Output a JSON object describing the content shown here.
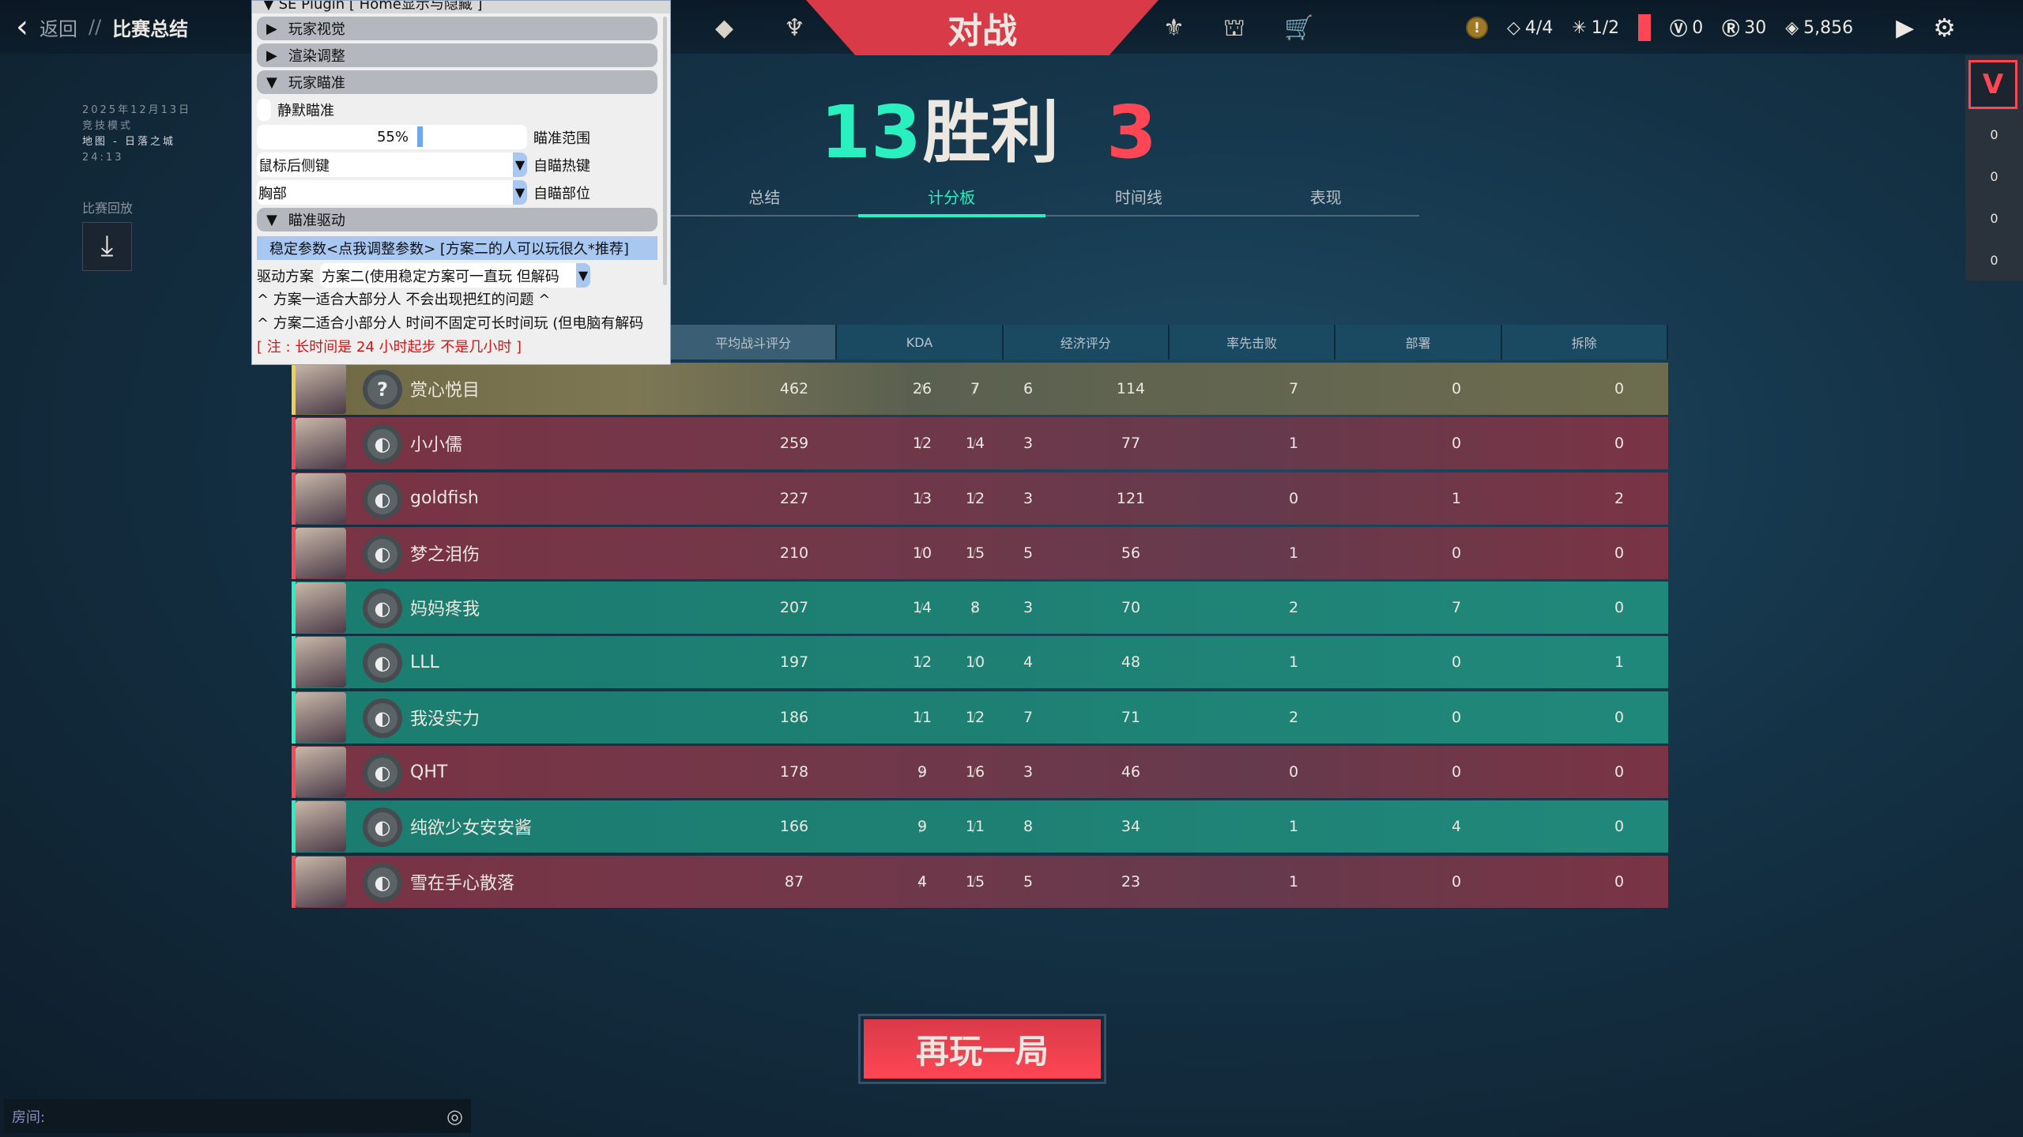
{
  "header": {
    "back_label": "返回",
    "separator": "//",
    "page_title": "比赛总结",
    "mode_banner": "对战"
  },
  "currency": {
    "missions": "4/4",
    "stars": "1/2",
    "vp": "0",
    "radianite": "30",
    "kc": "5,856"
  },
  "match_info": {
    "date": "2025年12月13日",
    "mode": "竞技模式",
    "map": "地图 - 日落之城",
    "duration": "24:13"
  },
  "replay": {
    "label": "比赛回放"
  },
  "result": {
    "ally_score": "13",
    "label": "胜利",
    "enemy_score": "3",
    "ally_color": "#2af0c0",
    "enemy_color": "#ff4655"
  },
  "tabs": [
    {
      "label": "总结"
    },
    {
      "label": "计分板",
      "active": true
    },
    {
      "label": "时间线"
    },
    {
      "label": "表现"
    }
  ],
  "table": {
    "headers": [
      "平均战斗评分",
      "KDA",
      "经济评分",
      "率先击败",
      "部署",
      "拆除"
    ],
    "rows": [
      {
        "name": "赏心悦目",
        "team": "yellow",
        "acs": "462",
        "k": "26",
        "d": "7",
        "a": "6",
        "econ": "114",
        "fb": "7",
        "plants": "0",
        "defuses": "0"
      },
      {
        "name": "小小儒",
        "team": "red",
        "acs": "259",
        "k": "12",
        "d": "14",
        "a": "3",
        "econ": "77",
        "fb": "1",
        "plants": "0",
        "defuses": "0"
      },
      {
        "name": "goldfish",
        "team": "red",
        "acs": "227",
        "k": "13",
        "d": "12",
        "a": "3",
        "econ": "121",
        "fb": "0",
        "plants": "1",
        "defuses": "2"
      },
      {
        "name": "梦之泪伤",
        "team": "red",
        "acs": "210",
        "k": "10",
        "d": "15",
        "a": "5",
        "econ": "56",
        "fb": "1",
        "plants": "0",
        "defuses": "0"
      },
      {
        "name": "妈妈疼我",
        "team": "teal",
        "acs": "207",
        "k": "14",
        "d": "8",
        "a": "3",
        "econ": "70",
        "fb": "2",
        "plants": "7",
        "defuses": "0"
      },
      {
        "name": "LLL",
        "team": "teal",
        "acs": "197",
        "k": "12",
        "d": "10",
        "a": "4",
        "econ": "48",
        "fb": "1",
        "plants": "0",
        "defuses": "1"
      },
      {
        "name": "我没实力",
        "team": "teal",
        "acs": "186",
        "k": "11",
        "d": "12",
        "a": "7",
        "econ": "71",
        "fb": "2",
        "plants": "0",
        "defuses": "0"
      },
      {
        "name": "QHT",
        "team": "red",
        "acs": "178",
        "k": "9",
        "d": "16",
        "a": "3",
        "econ": "46",
        "fb": "0",
        "plants": "0",
        "defuses": "0"
      },
      {
        "name": "纯欲少女安安酱",
        "team": "teal",
        "acs": "166",
        "k": "9",
        "d": "11",
        "a": "8",
        "econ": "34",
        "fb": "1",
        "plants": "4",
        "defuses": "0"
      },
      {
        "name": "雪在手心散落",
        "team": "red",
        "acs": "87",
        "k": "4",
        "d": "15",
        "a": "5",
        "econ": "23",
        "fb": "1",
        "plants": "0",
        "defuses": "0"
      }
    ]
  },
  "sidebar": {
    "counts": [
      "0",
      "0",
      "0",
      "0"
    ]
  },
  "play_again": {
    "label": "再玩一局"
  },
  "room": {
    "label": "房间:"
  },
  "plugin": {
    "title": "SE Plugin [ Home显示与隐藏 ]",
    "sections": {
      "visual": "玩家视觉",
      "render": "渲染调整",
      "aim": "玩家瞄准",
      "driver": "瞄准驱动"
    },
    "silent_aim": "静默瞄准",
    "aim_range": {
      "value": "55%",
      "percent": 55,
      "label": "瞄准范围"
    },
    "hotkey": {
      "value": "鼠标后侧键",
      "label": "自瞄热键"
    },
    "bone": {
      "value": "胸部",
      "label": "自瞄部位"
    },
    "stable_params": "稳定参数<点我调整参数> [方案二的人可以玩很久*推荐]",
    "driver_scheme": {
      "label": "驱动方案",
      "value": "方案二(使用稳定方案可一直玩 但解码"
    },
    "note1": "^ 方案一适合大部分人 不会出现把红的问题 ^",
    "note2": "^ 方案二适合小部分人 时间不固定可长时间玩 (但电脑有解码",
    "note3": "[ 注 : 长时间是 24 小时起步 不是几小时 ]"
  }
}
